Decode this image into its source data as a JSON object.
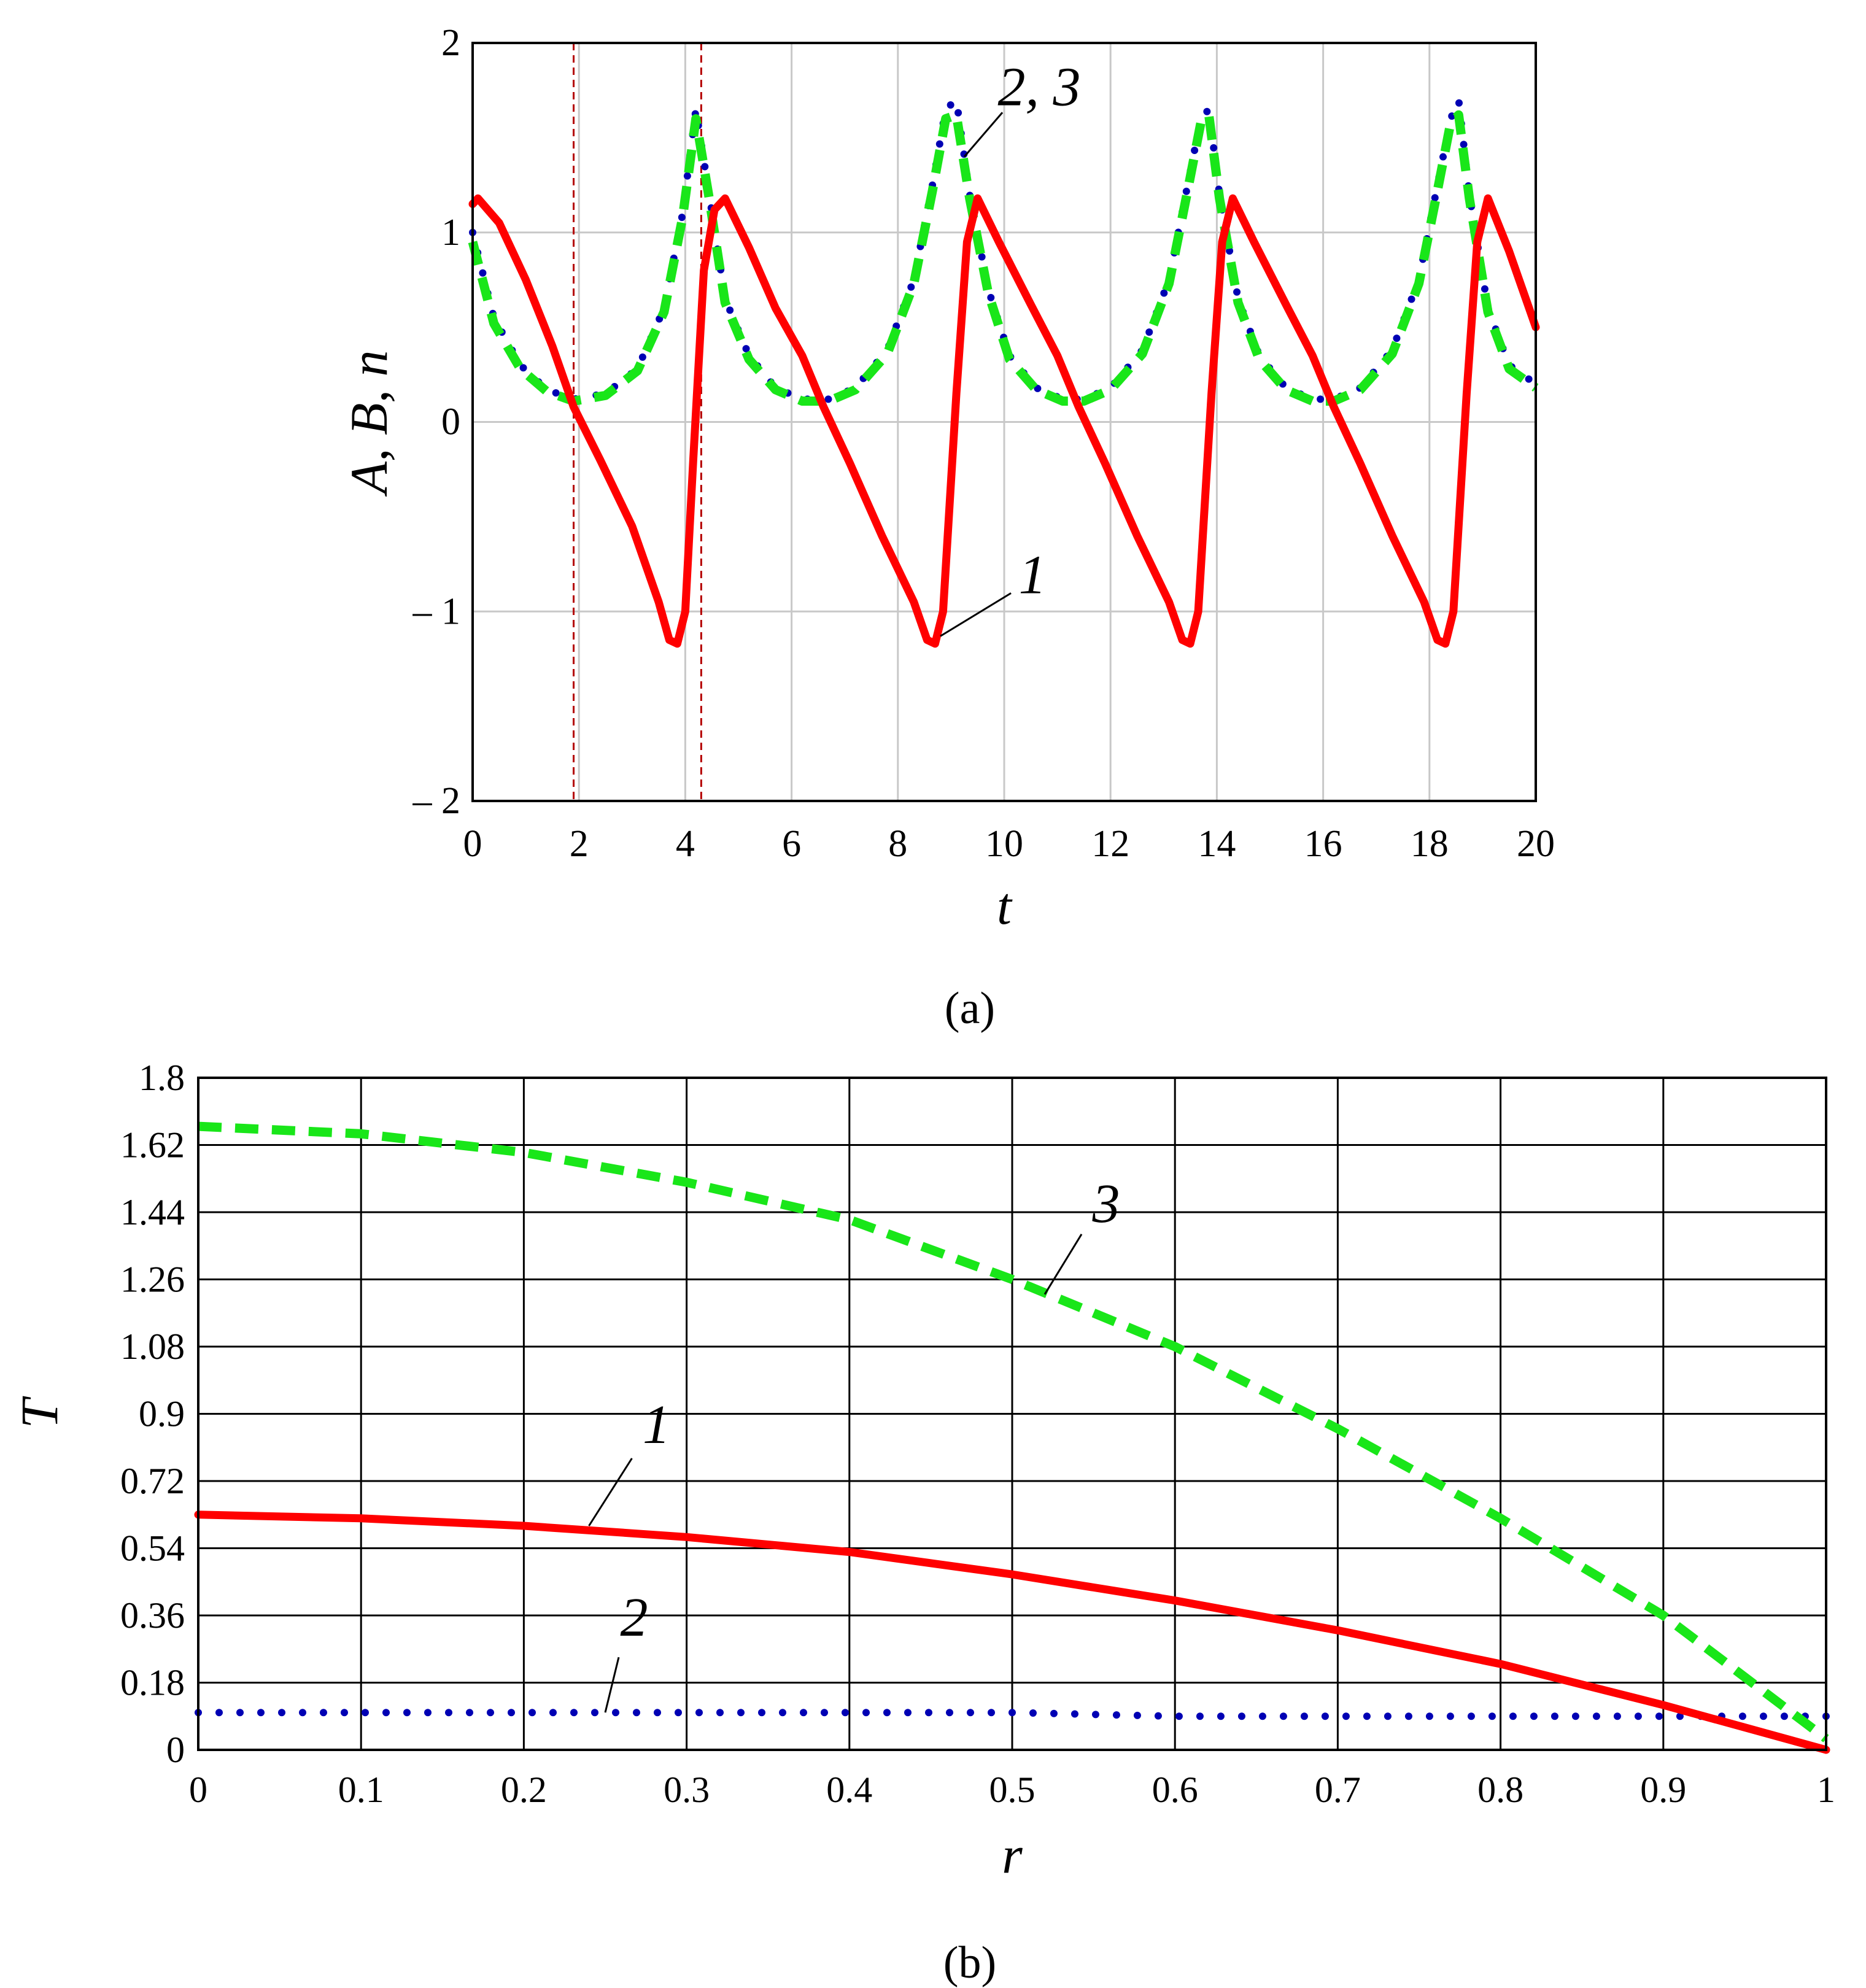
{
  "colors": {
    "curve_1": "#ff0000",
    "curve_2": "#0000b4",
    "curve_3": "#19e619",
    "guide_lines": "#b40000",
    "grid_a": "#c8c8c8",
    "grid_b": "#000000"
  },
  "chart_data": [
    {
      "id": "a",
      "type": "line",
      "caption": "(a)",
      "title": "",
      "xlabel": "t",
      "ylabel": "A, B, n",
      "xlim": [
        0,
        20
      ],
      "ylim": [
        -2,
        2
      ],
      "x_ticks": [
        0,
        2,
        4,
        6,
        8,
        10,
        12,
        14,
        16,
        18,
        20
      ],
      "y_ticks": [
        {
          "value": 2,
          "label": "2"
        },
        {
          "value": 1,
          "label": "1"
        },
        {
          "value": 0,
          "label": "0"
        },
        {
          "value": -1,
          "label": "– 1"
        },
        {
          "value": -2,
          "label": "– 2"
        }
      ],
      "grid": true,
      "vertical_guides": [
        1.9,
        4.3
      ],
      "annotations": [
        {
          "text": "2, 3",
          "points_to": {
            "x": 9.25,
            "y": 1.4
          }
        },
        {
          "text": "1",
          "points_to": {
            "x": 8.8,
            "y": -1.13
          }
        }
      ],
      "series": [
        {
          "name": "1",
          "style": "solid",
          "x": [
            0,
            0.1,
            0.5,
            1.0,
            1.5,
            1.9,
            2.4,
            3.0,
            3.5,
            3.7,
            3.85,
            4.0,
            4.15,
            4.35,
            4.55,
            4.75,
            5.2,
            5.7,
            6.2,
            6.6,
            7.1,
            7.7,
            8.3,
            8.55,
            8.7,
            8.85,
            9.1,
            9.3,
            9.5,
            9.9,
            10.5,
            11.0,
            11.4,
            11.9,
            12.5,
            13.1,
            13.35,
            13.5,
            13.65,
            13.9,
            14.1,
            14.3,
            14.7,
            15.3,
            15.8,
            16.2,
            16.7,
            17.3,
            17.9,
            18.15,
            18.3,
            18.45,
            18.7,
            18.9,
            19.1,
            19.5,
            20.0
          ],
          "y": [
            1.15,
            1.18,
            1.05,
            0.75,
            0.4,
            0.08,
            -0.2,
            -0.55,
            -0.95,
            -1.15,
            -1.17,
            -1.0,
            -0.2,
            0.8,
            1.12,
            1.18,
            0.92,
            0.6,
            0.35,
            0.08,
            -0.22,
            -0.6,
            -0.95,
            -1.15,
            -1.17,
            -1.0,
            0.15,
            0.95,
            1.18,
            0.95,
            0.62,
            0.35,
            0.08,
            -0.22,
            -0.6,
            -0.95,
            -1.15,
            -1.17,
            -1.0,
            0.15,
            0.95,
            1.18,
            0.95,
            0.62,
            0.35,
            0.08,
            -0.22,
            -0.6,
            -0.95,
            -1.15,
            -1.17,
            -1.0,
            0.15,
            0.95,
            1.18,
            0.9,
            0.5
          ]
        },
        {
          "name": "2",
          "style": "dotted",
          "x": [
            0,
            0.4,
            0.9,
            1.4,
            1.9,
            2.5,
            3.1,
            3.6,
            3.95,
            4.2,
            4.45,
            4.75,
            5.2,
            5.7,
            6.2,
            6.7,
            7.2,
            7.8,
            8.3,
            8.65,
            8.9,
            9.1,
            9.35,
            9.7,
            10.1,
            10.6,
            11.1,
            11.5,
            12.0,
            12.6,
            13.1,
            13.45,
            13.7,
            13.85,
            14.05,
            14.4,
            14.8,
            15.3,
            15.8,
            16.2,
            16.7,
            17.3,
            17.8,
            18.15,
            18.4,
            18.55,
            18.75,
            19.1,
            19.5,
            20.0
          ],
          "y": [
            1.0,
            0.55,
            0.3,
            0.17,
            0.12,
            0.15,
            0.28,
            0.6,
            1.1,
            1.65,
            1.2,
            0.65,
            0.35,
            0.18,
            0.12,
            0.12,
            0.18,
            0.38,
            0.75,
            1.25,
            1.65,
            1.7,
            1.2,
            0.7,
            0.35,
            0.18,
            0.12,
            0.12,
            0.18,
            0.38,
            0.75,
            1.25,
            1.6,
            1.65,
            1.2,
            0.65,
            0.35,
            0.18,
            0.12,
            0.12,
            0.18,
            0.38,
            0.75,
            1.25,
            1.6,
            1.7,
            1.2,
            0.6,
            0.3,
            0.2
          ]
        },
        {
          "name": "3",
          "style": "dashed",
          "x": [
            0,
            0.4,
            0.9,
            1.4,
            1.9,
            2.5,
            3.1,
            3.6,
            3.95,
            4.2,
            4.45,
            4.75,
            5.2,
            5.7,
            6.2,
            6.7,
            7.2,
            7.8,
            8.3,
            8.65,
            8.9,
            9.1,
            9.35,
            9.7,
            10.1,
            10.6,
            11.1,
            11.5,
            12.0,
            12.6,
            13.1,
            13.45,
            13.7,
            13.85,
            14.05,
            14.4,
            14.8,
            15.3,
            15.8,
            16.2,
            16.7,
            17.3,
            17.8,
            18.15,
            18.4,
            18.55,
            18.75,
            19.1,
            19.5,
            20.0
          ],
          "y": [
            0.95,
            0.52,
            0.28,
            0.16,
            0.11,
            0.14,
            0.27,
            0.58,
            1.08,
            1.6,
            1.18,
            0.63,
            0.33,
            0.17,
            0.11,
            0.11,
            0.17,
            0.36,
            0.73,
            1.22,
            1.6,
            1.62,
            1.18,
            0.68,
            0.33,
            0.17,
            0.11,
            0.11,
            0.17,
            0.36,
            0.73,
            1.22,
            1.58,
            1.62,
            1.18,
            0.63,
            0.33,
            0.17,
            0.11,
            0.11,
            0.17,
            0.36,
            0.73,
            1.22,
            1.58,
            1.62,
            1.18,
            0.58,
            0.28,
            0.18
          ]
        }
      ]
    },
    {
      "id": "b",
      "type": "line",
      "caption": "(b)",
      "title": "",
      "xlabel": "r",
      "ylabel": "T",
      "xlim": [
        0,
        1
      ],
      "ylim": [
        0,
        1.8
      ],
      "x_ticks": [
        {
          "value": 0,
          "label": "0"
        },
        {
          "value": 0.1,
          "label": "0.1"
        },
        {
          "value": 0.2,
          "label": "0.2"
        },
        {
          "value": 0.3,
          "label": "0.3"
        },
        {
          "value": 0.4,
          "label": "0.4"
        },
        {
          "value": 0.5,
          "label": "0.5"
        },
        {
          "value": 0.6,
          "label": "0.6"
        },
        {
          "value": 0.7,
          "label": "0.7"
        },
        {
          "value": 0.8,
          "label": "0.8"
        },
        {
          "value": 0.9,
          "label": "0.9"
        },
        {
          "value": 1,
          "label": "1"
        }
      ],
      "y_ticks": [
        {
          "value": 0,
          "label": "0"
        },
        {
          "value": 0.18,
          "label": "0.18"
        },
        {
          "value": 0.36,
          "label": "0.36"
        },
        {
          "value": 0.54,
          "label": "0.54"
        },
        {
          "value": 0.72,
          "label": "0.72"
        },
        {
          "value": 0.9,
          "label": "0.9"
        },
        {
          "value": 1.08,
          "label": "1.08"
        },
        {
          "value": 1.26,
          "label": "1.26"
        },
        {
          "value": 1.44,
          "label": "1.44"
        },
        {
          "value": 1.62,
          "label": "1.62"
        },
        {
          "value": 1.8,
          "label": "1.8"
        }
      ],
      "grid": true,
      "annotations": [
        {
          "text": "3",
          "points_to": {
            "x": 0.52,
            "y": 1.22
          }
        },
        {
          "text": "1",
          "points_to": {
            "x": 0.24,
            "y": 0.6
          }
        },
        {
          "text": "2",
          "points_to": {
            "x": 0.25,
            "y": 0.1
          }
        }
      ],
      "series": [
        {
          "name": "1",
          "style": "solid",
          "x": [
            0,
            0.1,
            0.2,
            0.3,
            0.4,
            0.5,
            0.6,
            0.7,
            0.8,
            0.9,
            1.0
          ],
          "y": [
            0.63,
            0.62,
            0.6,
            0.57,
            0.53,
            0.47,
            0.4,
            0.32,
            0.23,
            0.12,
            0.0
          ]
        },
        {
          "name": "2",
          "style": "dotted",
          "x": [
            0,
            0.1,
            0.2,
            0.3,
            0.4,
            0.5,
            0.6,
            0.7,
            0.8,
            0.9,
            1.0
          ],
          "y": [
            0.1,
            0.1,
            0.1,
            0.1,
            0.1,
            0.1,
            0.09,
            0.09,
            0.09,
            0.09,
            0.09
          ]
        },
        {
          "name": "3",
          "style": "dashed",
          "x": [
            0,
            0.1,
            0.2,
            0.3,
            0.4,
            0.5,
            0.6,
            0.7,
            0.8,
            0.9,
            1.0
          ],
          "y": [
            1.67,
            1.65,
            1.6,
            1.52,
            1.42,
            1.26,
            1.08,
            0.86,
            0.62,
            0.36,
            0.03
          ]
        }
      ]
    }
  ]
}
